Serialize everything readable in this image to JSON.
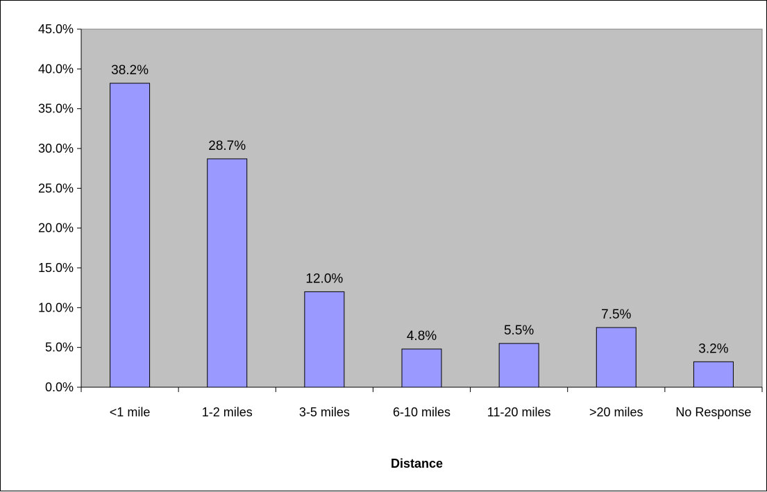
{
  "chart_data": {
    "type": "bar",
    "title": "",
    "xlabel": "Distance",
    "ylabel": "",
    "categories": [
      "<1 mile",
      "1-2 miles",
      "3-5 miles",
      "6-10 miles",
      "11-20 miles",
      ">20 miles",
      "No Response"
    ],
    "values": [
      38.2,
      28.7,
      12.0,
      4.8,
      5.5,
      7.5,
      3.2
    ],
    "data_labels": [
      "38.2%",
      "28.7%",
      "12.0%",
      "4.8%",
      "5.5%",
      "7.5%",
      "3.2%"
    ],
    "ylim": [
      0,
      45
    ],
    "ytick_values": [
      0,
      5,
      10,
      15,
      20,
      25,
      30,
      35,
      40,
      45
    ],
    "ytick_labels": [
      "0.0%",
      "5.0%",
      "10.0%",
      "15.0%",
      "20.0%",
      "25.0%",
      "30.0%",
      "35.0%",
      "40.0%",
      "45.0%"
    ],
    "grid": false,
    "legend": "none",
    "colors": {
      "plot_background": "#c0c0c0",
      "bar_fill": "#9999ff",
      "bar_stroke": "#000000"
    }
  }
}
